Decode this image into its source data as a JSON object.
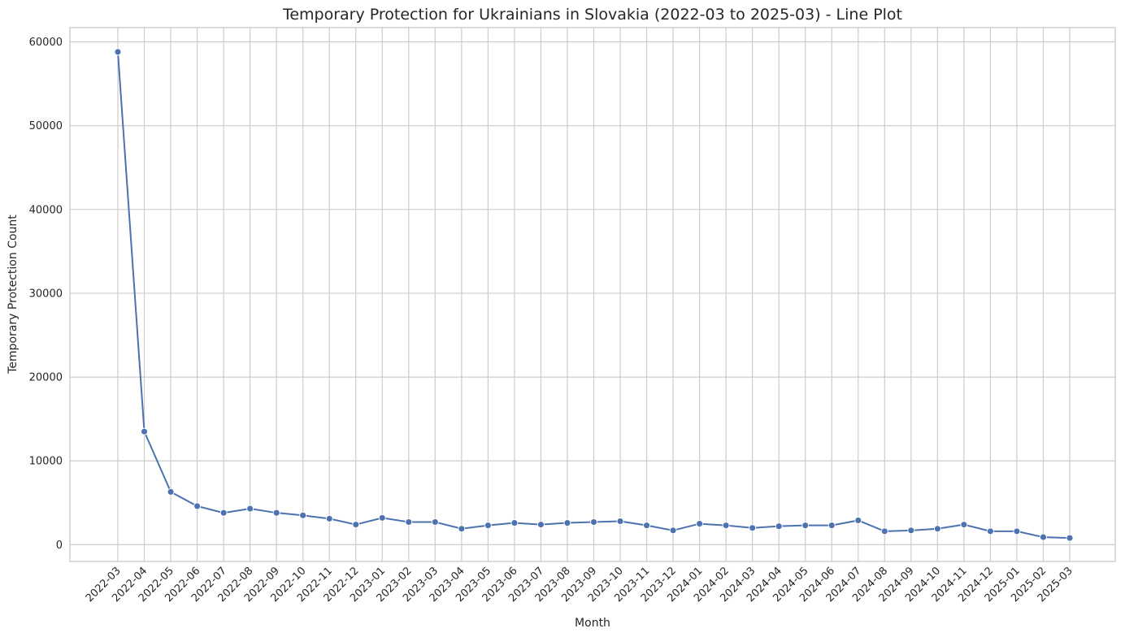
{
  "chart_data": {
    "type": "line",
    "title": "Temporary Protection for Ukrainians in Slovakia (2022-03 to 2025-03) - Line Plot",
    "xlabel": "Month",
    "ylabel": "Temporary Protection Count",
    "categories": [
      "2022-03",
      "2022-04",
      "2022-05",
      "2022-06",
      "2022-07",
      "2022-08",
      "2022-09",
      "2022-10",
      "2022-11",
      "2022-12",
      "2023-01",
      "2023-02",
      "2023-03",
      "2023-04",
      "2023-05",
      "2023-06",
      "2023-07",
      "2023-08",
      "2023-09",
      "2023-10",
      "2023-11",
      "2023-12",
      "2024-01",
      "2024-02",
      "2024-03",
      "2024-04",
      "2024-05",
      "2024-06",
      "2024-07",
      "2024-08",
      "2024-09",
      "2024-10",
      "2024-11",
      "2024-12",
      "2025-01",
      "2025-02",
      "2025-03"
    ],
    "series": [
      {
        "values": [
          58800,
          13500,
          6300,
          4600,
          3800,
          4300,
          3800,
          3500,
          3100,
          2400,
          3200,
          2700,
          2700,
          1900,
          2300,
          2600,
          2400,
          2600,
          2700,
          2800,
          2300,
          1700,
          2500,
          2300,
          2000,
          2200,
          2300,
          2300,
          2900,
          1600,
          1700,
          1900,
          2400,
          1600,
          1600,
          900,
          800
        ]
      }
    ],
    "ylim": [
      -2000,
      61700
    ],
    "yticks": [
      "0",
      "10000",
      "20000",
      "30000",
      "40000",
      "50000",
      "60000"
    ],
    "grid": true,
    "colors": {
      "line": "#4c72b0",
      "grid": "#cccccc"
    }
  }
}
